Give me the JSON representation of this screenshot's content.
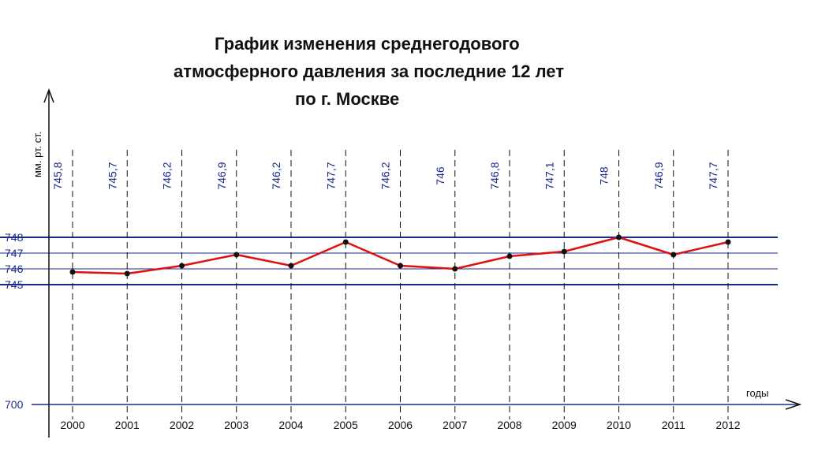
{
  "chart_data": {
    "type": "line",
    "title_lines": [
      "График изменения среднегодового",
      "атмосферного давления за последние 12 лет",
      "по  г. Москве"
    ],
    "xlabel": "годы",
    "ylabel": "мм. рт. ст.",
    "categories": [
      "2000",
      "2001",
      "2002",
      "2003",
      "2004",
      "2005",
      "2006",
      "2007",
      "2008",
      "2009",
      "2010",
      "2011",
      "2012"
    ],
    "values": [
      745.8,
      745.7,
      746.2,
      746.9,
      746.2,
      747.7,
      746.2,
      746,
      746.8,
      747.1,
      748,
      746.9,
      747.7
    ],
    "value_labels": [
      "745,8",
      "745,7",
      "746,2",
      "746,9",
      "746,2",
      "747,7",
      "746,2",
      "746",
      "746,8",
      "747,1",
      "748",
      "746,9",
      "747,7"
    ],
    "y_ticks": [
      {
        "value": 748,
        "label": "748",
        "style": "major"
      },
      {
        "value": 747,
        "label": "747",
        "style": "minor"
      },
      {
        "value": 746,
        "label": "746",
        "style": "minor"
      },
      {
        "value": 745,
        "label": "745",
        "style": "major"
      },
      {
        "value": 700,
        "label": "700",
        "style": "base"
      }
    ],
    "line_color": "#e01010",
    "marker_color": "#111111",
    "gridline_color": "#1a2a8c",
    "label_color": "#1a2a8c"
  }
}
